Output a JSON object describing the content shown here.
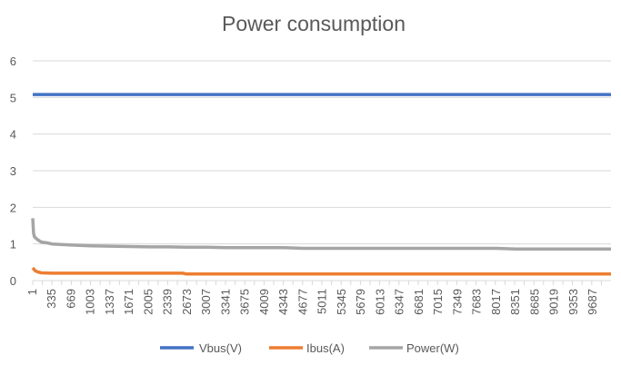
{
  "chart_data": {
    "type": "line",
    "title": "Power consumption",
    "xlabel": "",
    "ylabel": "",
    "ylim": [
      0,
      6
    ],
    "yticks": [
      "0",
      "1",
      "2",
      "3",
      "4",
      "5",
      "6"
    ],
    "xlim": [
      1,
      10000
    ],
    "xticks": [
      "1",
      "335",
      "669",
      "1003",
      "1337",
      "1671",
      "2005",
      "2339",
      "2673",
      "3007",
      "3341",
      "3675",
      "4009",
      "4343",
      "4677",
      "5011",
      "5345",
      "5679",
      "6013",
      "6347",
      "6681",
      "7015",
      "7349",
      "7683",
      "8017",
      "8351",
      "8685",
      "9019",
      "9353",
      "9687"
    ],
    "grid": "horizontal",
    "legend": "bottom",
    "series": [
      {
        "name": "Vbus(V)",
        "color": "#4472c4",
        "x": [
          1,
          10000
        ],
        "values": [
          5.08,
          5.08
        ]
      },
      {
        "name": "Ibus(A)",
        "color": "#ed7d31",
        "x": [
          1,
          40,
          80,
          150,
          335,
          2600,
          2650,
          10000
        ],
        "values": [
          0.35,
          0.27,
          0.24,
          0.21,
          0.2,
          0.2,
          0.18,
          0.18
        ]
      },
      {
        "name": "Power(W)",
        "color": "#a5a5a5",
        "x": [
          1,
          15,
          30,
          60,
          100,
          150,
          250,
          335,
          669,
          1003,
          1337,
          1671,
          2005,
          2339,
          2673,
          3007,
          3341,
          4343,
          4677,
          8017,
          8351,
          10000
        ],
        "values": [
          1.7,
          1.3,
          1.2,
          1.15,
          1.1,
          1.05,
          1.03,
          1.0,
          0.97,
          0.95,
          0.94,
          0.93,
          0.92,
          0.92,
          0.91,
          0.91,
          0.9,
          0.9,
          0.88,
          0.88,
          0.86,
          0.86
        ]
      }
    ]
  }
}
